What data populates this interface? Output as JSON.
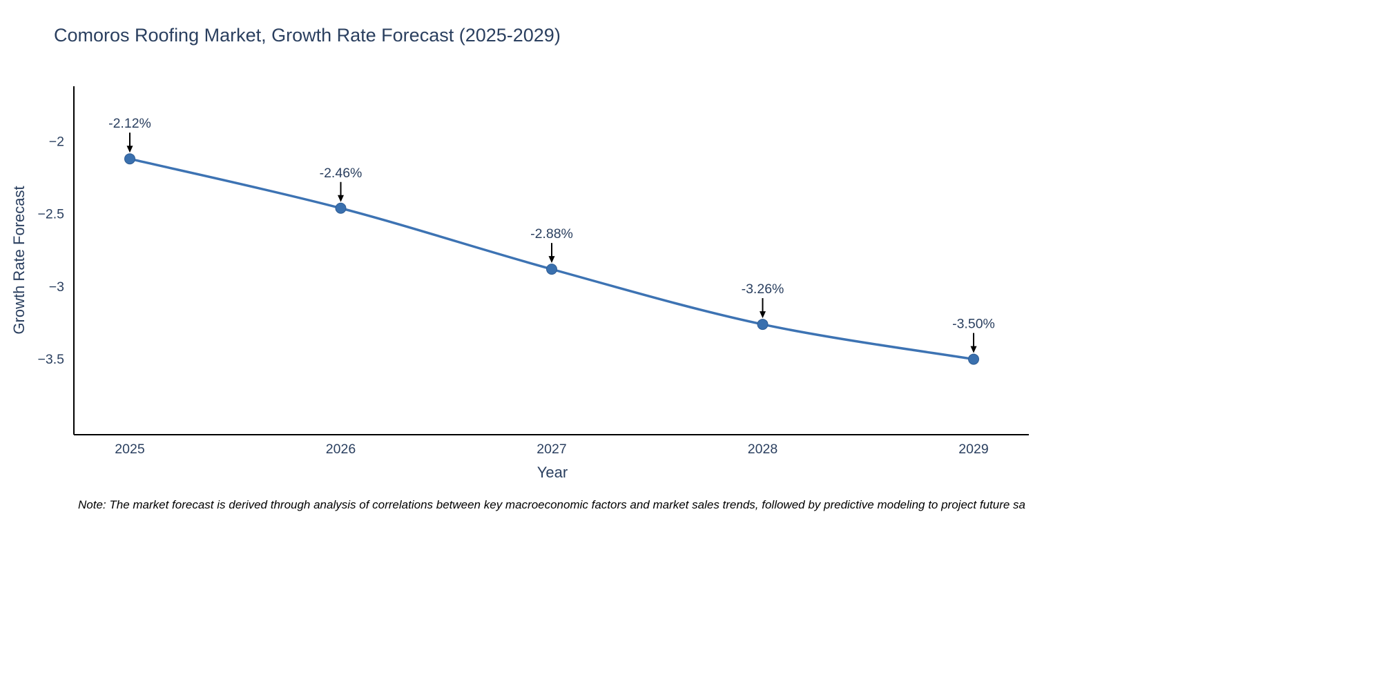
{
  "title": "Comoros Roofing Market, Growth Rate Forecast (2025-2029)",
  "note": "Note: The market forecast is derived through analysis of correlations between key macroeconomic factors and market sales trends, followed by predictive modeling to project future sa",
  "chart_data": {
    "type": "line",
    "title": "Comoros Roofing Market, Growth Rate Forecast (2025-2029)",
    "xlabel": "Year",
    "ylabel": "Growth Rate Forecast",
    "categories": [
      "2025",
      "2026",
      "2027",
      "2028",
      "2029"
    ],
    "values": [
      -2.12,
      -2.46,
      -2.88,
      -3.26,
      -3.5
    ],
    "annotations": [
      "-2.12%",
      "-2.46%",
      "-2.88%",
      "-3.26%",
      "-3.50%"
    ],
    "yticks": [
      -2,
      -2.5,
      -3,
      -3.5
    ],
    "ytick_labels": [
      "−2",
      "−2.5",
      "−3",
      "−3.5"
    ],
    "ylim": [
      -4.02,
      -1.62
    ],
    "line_shape": "spline",
    "grid": false,
    "legend": "none",
    "line_color": "#3d73b3",
    "marker_color": "#3a70ae",
    "marker_edge_color": "#2f5d94",
    "axis_color": "#000000",
    "text_color": "#2a3f5f",
    "annotation_arrow_color": "#000000"
  }
}
